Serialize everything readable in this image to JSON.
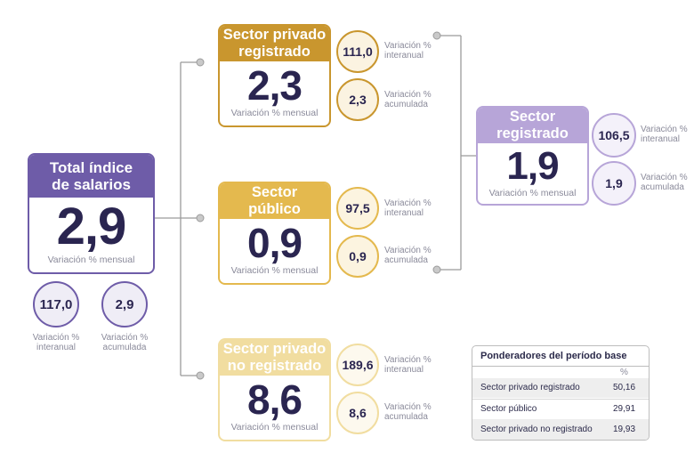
{
  "total": {
    "title_line1": "Total índice",
    "title_line2": "de salarios",
    "value": "2,9",
    "caption": "Variación % mensual",
    "interanual": "117,0",
    "acumulada": "2,9",
    "interanual_label": [
      "Variación %",
      "interanual"
    ],
    "acumulada_label": [
      "Variación %",
      "acumulada"
    ],
    "color": "#6e5ca8"
  },
  "privado_registrado": {
    "title_line1": "Sector privado",
    "title_line2": "registrado",
    "value": "2,3",
    "caption": "Variación % mensual",
    "interanual": "111,0",
    "acumulada": "2,3",
    "interanual_label": [
      "Variación %",
      "interanual"
    ],
    "acumulada_label": [
      "Variación %",
      "acumulada"
    ],
    "color": "#c9962e"
  },
  "publico": {
    "title_line1": "Sector",
    "title_line2": "público",
    "value": "0,9",
    "caption": "Variación % mensual",
    "interanual": "97,5",
    "acumulada": "0,9",
    "interanual_label": [
      "Variación %",
      "interanual"
    ],
    "acumulada_label": [
      "Variación %",
      "acumulada"
    ],
    "color": "#e4b94e"
  },
  "privado_no_registrado": {
    "title_line1": "Sector privado",
    "title_line2": "no registrado",
    "value": "8,6",
    "caption": "Variación % mensual",
    "interanual": "189,6",
    "acumulada": "8,6",
    "interanual_label": [
      "Variación %",
      "interanual"
    ],
    "acumulada_label": [
      "Variación %",
      "acumulada"
    ],
    "color": "#f1dda0"
  },
  "registrado": {
    "title_line1": "Sector",
    "title_line2": "registrado",
    "value": "1,9",
    "caption": "Variación % mensual",
    "interanual": "106,5",
    "acumulada": "1,9",
    "interanual_label": [
      "Variación %",
      "interanual"
    ],
    "acumulada_label": [
      "Variación %",
      "acumulada"
    ],
    "color": "#b7a5d8"
  },
  "ponderadores": {
    "title": "Ponderadores del período base",
    "unit": "%",
    "rows": [
      {
        "name": "Sector privado registrado",
        "value": "50,16"
      },
      {
        "name": "Sector público",
        "value": "29,91"
      },
      {
        "name": "Sector privado no registrado",
        "value": "19,93"
      }
    ]
  }
}
